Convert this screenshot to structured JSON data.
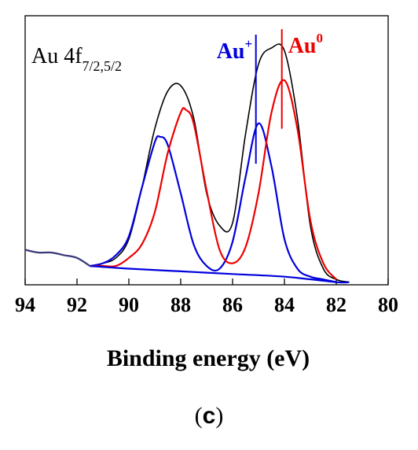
{
  "chart_data": {
    "type": "line",
    "title": "Au 4f",
    "title_subscript": "7/2,5/2",
    "xlabel": "Binding energy (eV)",
    "ylabel": "",
    "x_reversed": true,
    "xlim": [
      94,
      80
    ],
    "ylim": [
      0,
      1
    ],
    "x_ticks": [
      "94",
      "92",
      "90",
      "88",
      "86",
      "84",
      "82",
      "80"
    ],
    "grid": false,
    "y_ticks_shown": false,
    "series": [
      {
        "color": "#000000",
        "x": [
          91.5,
          91,
          90.5,
          90,
          89.5,
          89,
          88.5,
          88,
          87.5,
          87,
          86.5,
          86,
          85.5,
          85,
          84.5,
          84,
          83.5,
          83,
          82.5,
          82,
          81.5
        ],
        "values": [
          0.07,
          0.08,
          0.1,
          0.17,
          0.36,
          0.58,
          0.72,
          0.74,
          0.62,
          0.34,
          0.22,
          0.23,
          0.56,
          0.82,
          0.88,
          0.87,
          0.62,
          0.22,
          0.06,
          0.02,
          0.01
        ]
      },
      {
        "color": "#0000dd",
        "x": [
          91.5,
          91,
          90.5,
          90,
          89.5,
          89,
          88.8,
          88.5,
          88,
          87.5,
          87,
          86.5,
          86,
          85.5,
          85,
          84.5,
          84,
          83.5,
          83,
          82.5,
          82
        ],
        "values": [
          0.07,
          0.08,
          0.11,
          0.18,
          0.36,
          0.53,
          0.55,
          0.52,
          0.34,
          0.15,
          0.07,
          0.06,
          0.16,
          0.4,
          0.6,
          0.44,
          0.17,
          0.06,
          0.03,
          0.02,
          0.01
        ]
      },
      {
        "color": "#ee0000",
        "x": [
          91.5,
          91,
          90.5,
          90,
          89.5,
          89,
          88.5,
          88,
          87.8,
          87.5,
          87,
          86.5,
          86,
          85.5,
          85,
          84.5,
          84,
          83.5,
          83,
          82.5,
          82
        ],
        "values": [
          0.07,
          0.07,
          0.07,
          0.1,
          0.15,
          0.27,
          0.49,
          0.64,
          0.65,
          0.6,
          0.35,
          0.13,
          0.08,
          0.14,
          0.34,
          0.64,
          0.76,
          0.58,
          0.24,
          0.08,
          0.02
        ]
      },
      {
        "color": "#0000dd",
        "x": [
          91.5,
          90,
          88,
          86,
          84,
          82,
          81.5
        ],
        "values": [
          0.07,
          0.06,
          0.05,
          0.04,
          0.03,
          0.01,
          0.01
        ]
      },
      {
        "color": "#3a3a7a",
        "x": [
          94,
          93.5,
          93,
          92.5,
          92,
          91.5
        ],
        "values": [
          0.13,
          0.12,
          0.12,
          0.11,
          0.1,
          0.07
        ]
      }
    ],
    "annotations": [
      {
        "text": "Au",
        "superscript": "+",
        "x": 85.1,
        "color": "#0000dd"
      },
      {
        "text": "Au",
        "superscript": "0",
        "x": 84.1,
        "color": "#ee0000"
      }
    ]
  },
  "caption": {
    "open": "(",
    "letter": "c",
    "close": ")"
  }
}
